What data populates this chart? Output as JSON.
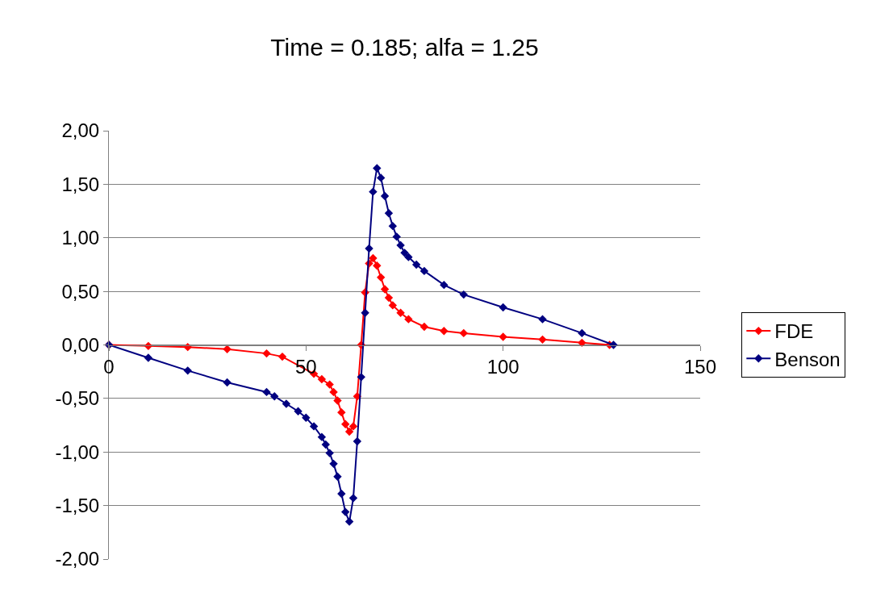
{
  "chart_data": {
    "type": "line",
    "title": "Time = 0.185; alfa = 1.25",
    "marker": "diamond",
    "grid": "y",
    "legend": "right",
    "xlim": [
      0,
      150
    ],
    "xticks": [
      0,
      50,
      100,
      150
    ],
    "ylim": [
      -2,
      2
    ],
    "yticks": [
      {
        "value": -2,
        "label": "-2,00"
      },
      {
        "value": -1.5,
        "label": "-1,50"
      },
      {
        "value": -1,
        "label": "-1,00"
      },
      {
        "value": -0.5,
        "label": "-0,50"
      },
      {
        "value": 0,
        "label": "0,00"
      },
      {
        "value": 0.5,
        "label": "0,50"
      },
      {
        "value": 1,
        "label": "1,00"
      },
      {
        "value": 1.5,
        "label": "1,50"
      },
      {
        "value": 2,
        "label": "2,00"
      }
    ],
    "series": [
      {
        "name": "FDE",
        "color": "#ff0000",
        "x": [
          0,
          10,
          20,
          30,
          40,
          44,
          52,
          54,
          56,
          57,
          58,
          59,
          60,
          61,
          62,
          63,
          64,
          65,
          66,
          67,
          68,
          69,
          70,
          71,
          72,
          74,
          76,
          80,
          85,
          90,
          100,
          110,
          120,
          127
        ],
        "values": [
          0,
          -0.01,
          -0.02,
          -0.04,
          -0.08,
          -0.11,
          -0.27,
          -0.32,
          -0.37,
          -0.44,
          -0.52,
          -0.63,
          -0.74,
          -0.81,
          -0.76,
          -0.48,
          0,
          0.49,
          0.76,
          0.81,
          0.74,
          0.63,
          0.52,
          0.44,
          0.37,
          0.3,
          0.24,
          0.17,
          0.13,
          0.11,
          0.075,
          0.05,
          0.02,
          0
        ]
      },
      {
        "name": "Benson",
        "color": "#000080",
        "x": [
          0,
          10,
          20,
          30,
          40,
          42,
          45,
          48,
          50,
          52,
          54,
          55,
          56,
          57,
          58,
          59,
          60,
          61,
          62,
          63,
          64,
          65,
          66,
          67,
          68,
          69,
          70,
          71,
          72,
          73,
          74,
          75,
          76,
          78,
          80,
          85,
          90,
          100,
          110,
          120,
          128
        ],
        "values": [
          0,
          -0.12,
          -0.24,
          -0.35,
          -0.44,
          -0.48,
          -0.55,
          -0.62,
          -0.68,
          -0.76,
          -0.86,
          -0.93,
          -1.01,
          -1.11,
          -1.23,
          -1.39,
          -1.56,
          -1.65,
          -1.43,
          -0.9,
          -0.3,
          0.3,
          0.9,
          1.43,
          1.65,
          1.56,
          1.39,
          1.23,
          1.11,
          1.01,
          0.93,
          0.86,
          0.82,
          0.75,
          0.69,
          0.56,
          0.47,
          0.35,
          0.24,
          0.11,
          0
        ]
      }
    ]
  }
}
